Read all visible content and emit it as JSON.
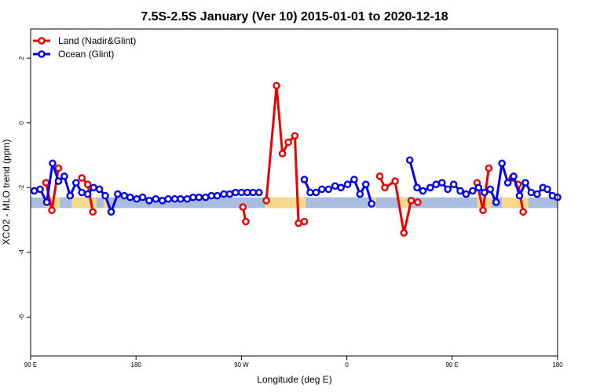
{
  "chart_data": {
    "type": "line",
    "title": "7.5S-2.5S January (Ver 10)   2015-01-01 to 2020-12-18",
    "xlabel": "Longitude (deg E)",
    "ylabel": "XCO2 - MLO trend (ppm)",
    "xlim": [
      90,
      450
    ],
    "ylim": [
      -7.2,
      2.9
    ],
    "x_ticks": [
      90,
      162,
      234,
      306,
      378,
      450
    ],
    "x_tick_labels": [
      "90 E",
      "180",
      "90 W",
      "0",
      "90 E",
      "180"
    ],
    "y_ticks": [
      -6,
      -4,
      -2,
      0,
      2
    ],
    "y_tick_labels": [
      "-6",
      "-4",
      "-2",
      "0",
      "2"
    ],
    "grid": false,
    "legend": {
      "placement": "top-left",
      "entries": [
        "Land (Nadir&Glint)",
        "Ocean (Glint)"
      ]
    },
    "series": [
      {
        "name": "Land (Nadir&Glint)",
        "color": "#ee0000",
        "segments": [
          [
            [
              100.5,
              -1.85
            ],
            [
              104.5,
              -2.7
            ],
            [
              109,
              -1.4
            ]
          ],
          [
            [
              125,
              -1.7
            ],
            [
              129,
              -1.9
            ],
            [
              132.5,
              -2.75
            ]
          ],
          [
            [
              235,
              -2.6
            ],
            [
              237,
              -3.05
            ]
          ],
          [
            [
              251,
              -2.4
            ],
            [
              258,
              1.15
            ],
            [
              262,
              -0.95
            ],
            [
              266,
              -0.6
            ],
            [
              270.5,
              -0.4
            ],
            [
              273,
              -3.1
            ],
            [
              277,
              -3.05
            ]
          ],
          [
            [
              328.5,
              -1.65
            ],
            [
              332,
              -2.0
            ],
            [
              339,
              -1.8
            ],
            [
              345,
              -3.4
            ],
            [
              350,
              -2.4
            ],
            [
              354.5,
              -2.45
            ]
          ],
          [
            [
              395,
              -1.85
            ],
            [
              399,
              -2.7
            ],
            [
              403,
              -1.4
            ]
          ],
          [
            [
              419,
              -1.7
            ],
            [
              423,
              -1.9
            ],
            [
              426.5,
              -2.75
            ]
          ]
        ]
      },
      {
        "name": "Ocean (Glint)",
        "color": "#0000ee",
        "segments": [
          [
            [
              92.5,
              -2.1
            ],
            [
              96.5,
              -2.05
            ],
            [
              101,
              -2.45
            ],
            [
              105,
              -1.25
            ],
            [
              109,
              -1.8
            ],
            [
              113,
              -1.65
            ],
            [
              117,
              -2.25
            ],
            [
              121,
              -1.85
            ],
            [
              125,
              -2.15
            ],
            [
              129,
              -2.2
            ],
            [
              133,
              -2.0
            ],
            [
              137,
              -2.05
            ],
            [
              141,
              -2.25
            ],
            [
              145,
              -2.75
            ],
            [
              149.5,
              -2.2
            ],
            [
              154,
              -2.25
            ],
            [
              158,
              -2.3
            ],
            [
              162.5,
              -2.35
            ],
            [
              166.5,
              -2.3
            ],
            [
              171,
              -2.4
            ],
            [
              175.5,
              -2.35
            ],
            [
              180,
              -2.4
            ],
            [
              184,
              -2.35
            ],
            [
              188.5,
              -2.35
            ],
            [
              192.5,
              -2.35
            ],
            [
              197,
              -2.35
            ],
            [
              201,
              -2.3
            ],
            [
              205,
              -2.3
            ],
            [
              209.5,
              -2.3
            ],
            [
              213.5,
              -2.25
            ],
            [
              217.5,
              -2.25
            ],
            [
              222,
              -2.2
            ],
            [
              226,
              -2.2
            ],
            [
              230,
              -2.15
            ],
            [
              234,
              -2.15
            ],
            [
              238,
              -2.15
            ],
            [
              242,
              -2.15
            ],
            [
              246,
              -2.15
            ]
          ],
          [
            [
              277,
              -1.75
            ],
            [
              281,
              -2.15
            ],
            [
              285,
              -2.15
            ],
            [
              289,
              -2.05
            ],
            [
              293.5,
              -2.05
            ],
            [
              298,
              -1.95
            ],
            [
              302,
              -2.0
            ],
            [
              306.5,
              -1.9
            ],
            [
              311,
              -1.75
            ],
            [
              315,
              -2.2
            ],
            [
              319,
              -1.9
            ],
            [
              323,
              -2.5
            ]
          ],
          [
            [
              349,
              -1.15
            ],
            [
              354,
              -2.0
            ],
            [
              358,
              -2.1
            ],
            [
              363,
              -2.0
            ],
            [
              367,
              -1.9
            ],
            [
              371,
              -1.85
            ],
            [
              375,
              -2.05
            ],
            [
              379,
              -1.9
            ],
            [
              383.5,
              -2.1
            ],
            [
              387.5,
              -2.2
            ],
            [
              392,
              -2.1
            ],
            [
              396,
              -2.0
            ],
            [
              400,
              -2.15
            ],
            [
              404,
              -2.05
            ],
            [
              408,
              -2.45
            ],
            [
              412,
              -1.25
            ],
            [
              416,
              -1.85
            ],
            [
              420,
              -1.65
            ],
            [
              424,
              -2.25
            ],
            [
              428,
              -1.85
            ],
            [
              432,
              -2.15
            ],
            [
              436,
              -2.2
            ],
            [
              440,
              -2.0
            ],
            [
              443,
              -2.05
            ],
            [
              446.5,
              -2.25
            ],
            [
              450,
              -2.3
            ]
          ]
        ]
      }
    ],
    "surface_band": {
      "y_range": [
        -2.63,
        -2.3
      ],
      "ocean_color": "#a8bde0",
      "land_color": "#f7d98a",
      "land_intervals": [
        [
          100,
          110
        ],
        [
          118,
          135
        ],
        [
          140,
          143
        ],
        [
          250,
          278
        ],
        [
          323,
          326
        ],
        [
          342,
          348
        ],
        [
          395,
          405
        ],
        [
          412,
          430
        ]
      ]
    }
  }
}
